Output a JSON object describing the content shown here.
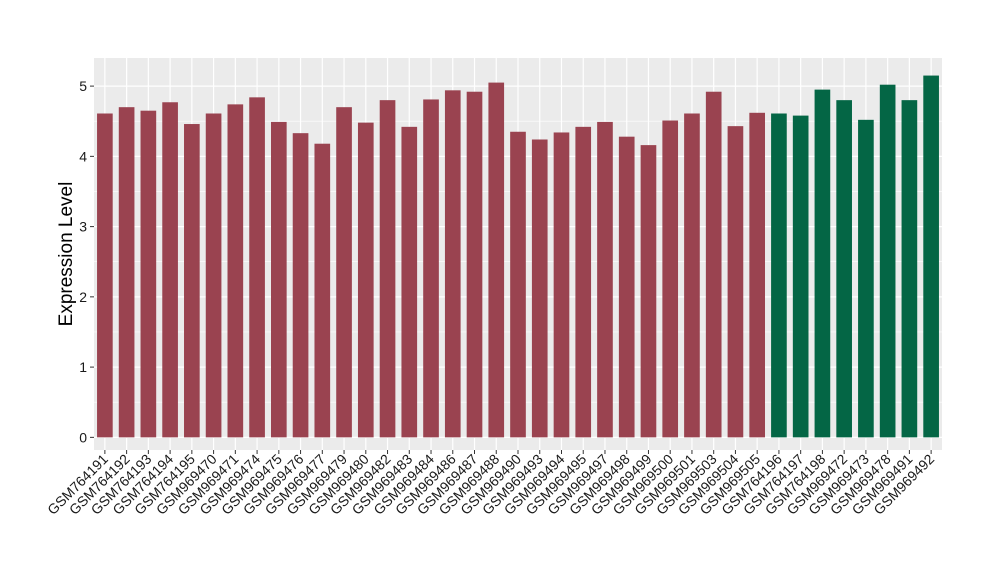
{
  "chart_data": {
    "type": "bar",
    "title": "",
    "xlabel": "",
    "ylabel": "Expression Level",
    "ylim": [
      -0.18,
      5.4
    ],
    "yticks": [
      0,
      1,
      2,
      3,
      4,
      5
    ],
    "grid": true,
    "panel_background": "#ebebeb",
    "grid_color": "#ffffff",
    "group_colors": {
      "1": "#9a4350",
      "2": "#046645"
    },
    "categories": [
      "GSM764191",
      "GSM764192",
      "GSM764193",
      "GSM764194",
      "GSM764195",
      "GSM969470",
      "GSM969471",
      "GSM969474",
      "GSM969475",
      "GSM969476",
      "GSM969477",
      "GSM969479",
      "GSM969480",
      "GSM969482",
      "GSM969483",
      "GSM969484",
      "GSM969486",
      "GSM969487",
      "GSM969488",
      "GSM969490",
      "GSM969493",
      "GSM969494",
      "GSM969495",
      "GSM969497",
      "GSM969498",
      "GSM969499",
      "GSM969500",
      "GSM969501",
      "GSM969503",
      "GSM969504",
      "GSM969505",
      "GSM764196",
      "GSM764197",
      "GSM764198",
      "GSM969472",
      "GSM969473",
      "GSM969478",
      "GSM969491",
      "GSM969492"
    ],
    "values": [
      4.61,
      4.7,
      4.65,
      4.77,
      4.46,
      4.61,
      4.74,
      4.84,
      4.49,
      4.33,
      4.18,
      4.7,
      4.48,
      4.8,
      4.42,
      4.81,
      4.94,
      4.92,
      5.05,
      4.35,
      4.24,
      4.34,
      4.42,
      4.49,
      4.28,
      4.16,
      4.51,
      4.61,
      4.92,
      4.43,
      4.62,
      4.61,
      4.58,
      4.95,
      4.8,
      4.52,
      5.02,
      4.8,
      5.15
    ],
    "groups": [
      1,
      1,
      1,
      1,
      1,
      1,
      1,
      1,
      1,
      1,
      1,
      1,
      1,
      1,
      1,
      1,
      1,
      1,
      1,
      1,
      1,
      1,
      1,
      1,
      1,
      1,
      1,
      1,
      1,
      1,
      1,
      2,
      2,
      2,
      2,
      2,
      2,
      2,
      2
    ]
  }
}
